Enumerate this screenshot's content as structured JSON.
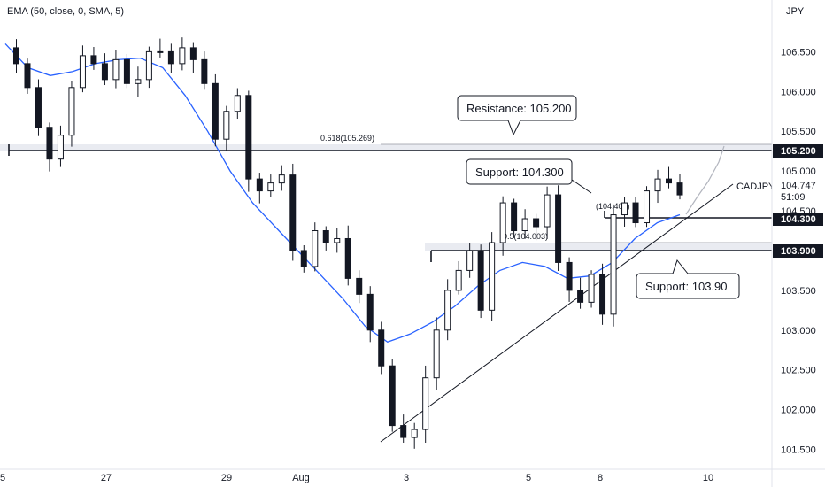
{
  "indicator_label": "EMA (50, close, 0, SMA, 5)",
  "currency": "JPY",
  "colors": {
    "candle": "#131722",
    "candle_faded": "#b2b5be",
    "ema": "#2962ff",
    "level": "#131722",
    "zone": "#e0e3eb",
    "badge_bg": "#131722",
    "badge_text": "#ffffff"
  },
  "chart_data": {
    "type": "line",
    "symbol": "CADJPY",
    "title": "",
    "xlabel": "",
    "ylabel": "JPY",
    "ylim": [
      101.25,
      107.15
    ],
    "y_ticks": [
      101.5,
      102.0,
      102.5,
      103.0,
      103.5,
      104.0,
      104.5,
      105.0,
      105.5,
      106.0,
      106.5
    ],
    "y_tick_labels": [
      "101.500",
      "102.000",
      "102.500",
      "103.000",
      "103.500",
      "104.000",
      "104.500",
      "105.000",
      "105.500",
      "106.000",
      "106.500"
    ],
    "x_tick_labels": [
      "5",
      "27",
      "29",
      "Aug",
      "3",
      "5",
      "8",
      "10"
    ],
    "current_price": "104.747",
    "countdown": "51:09",
    "grid": false,
    "close_series": {
      "name": "",
      "values": [
        106.55,
        106.35,
        106.05,
        105.55,
        105.15,
        105.45,
        106.05,
        106.45,
        106.35,
        106.15,
        106.4,
        106.1,
        106.15,
        106.5,
        106.5,
        106.35,
        106.55,
        106.4,
        106.1,
        105.4,
        105.75,
        105.95,
        104.9,
        104.75,
        104.85,
        104.95,
        104.0,
        103.8,
        104.25,
        104.1,
        104.15,
        103.65,
        103.45,
        103.0,
        102.55,
        101.8,
        101.65,
        101.75,
        102.4,
        103.0,
        103.5,
        103.75,
        104.0,
        103.25,
        104.1,
        104.6,
        104.25,
        104.4,
        104.3,
        104.7,
        103.85,
        103.5,
        103.35,
        103.7,
        103.2,
        104.45,
        104.6,
        104.35,
        104.75,
        104.9,
        104.85,
        104.7
      ]
    },
    "ema": {
      "name": "EMA (50, close, 0, SMA, 5)",
      "values": [
        106.6,
        106.3,
        106.2,
        106.25,
        106.35,
        106.4,
        106.42,
        106.3,
        105.95,
        105.5,
        105.0,
        104.6,
        104.3,
        104.0,
        103.7,
        103.4,
        103.05,
        102.85,
        102.95,
        103.1,
        103.3,
        103.55,
        103.75,
        103.85,
        103.8,
        103.65,
        103.68,
        103.85,
        104.15,
        104.35,
        104.45
      ]
    },
    "levels": [
      {
        "value": 105.2,
        "label": "105.200",
        "type": "resistance"
      },
      {
        "value": 104.3,
        "label": "104.300",
        "type": "support"
      },
      {
        "value": 103.9,
        "label": "103.900",
        "type": "support"
      }
    ],
    "fibonacci": [
      {
        "ratio": "0.618",
        "value": 105.269,
        "label": "0.618(105.269)"
      },
      {
        "ratio": "0.5",
        "value": 104.003,
        "label": "0.5(104.003)"
      },
      {
        "ratio": "",
        "value": 104.401,
        "label": "(104.401)"
      }
    ],
    "trendline": {
      "from": 101.45,
      "to": 104.85
    },
    "annotations": [
      {
        "text": "Resistance: 105.200",
        "target": 105.2
      },
      {
        "text": "Support: 104.300",
        "target": 104.3
      },
      {
        "text": "Support: 103.90",
        "target": 103.9
      }
    ]
  }
}
